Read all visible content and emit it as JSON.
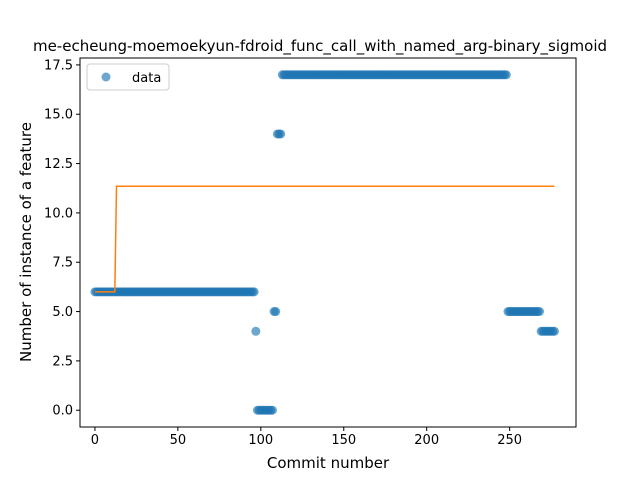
{
  "chart_data": {
    "type": "scatter",
    "title": "me-echeung-moemoekyun-fdroid_func_call_with_named_arg-binary_sigmoid",
    "xlabel": "Commit number",
    "ylabel": "Number of instance of a feature",
    "xlim": [
      -9,
      290
    ],
    "ylim": [
      -0.85,
      17.85
    ],
    "xticks": [
      0,
      50,
      100,
      150,
      200,
      250
    ],
    "yticks": [
      0.0,
      2.5,
      5.0,
      7.5,
      10.0,
      12.5,
      15.0,
      17.5
    ],
    "ytick_labels": [
      "0.0",
      "2.5",
      "5.0",
      "7.5",
      "10.0",
      "12.5",
      "15.0",
      "17.5"
    ],
    "grid": false,
    "legend": {
      "placement": "top-left",
      "entries": [
        "data"
      ]
    },
    "series": [
      {
        "name": "data",
        "kind": "scatter",
        "color": "#1f77b4",
        "segments": [
          {
            "x_start": 0,
            "x_end": 96,
            "y": 6
          },
          {
            "x_start": 97,
            "x_end": 97,
            "y": 4
          },
          {
            "x_start": 98,
            "x_end": 107,
            "y": 0
          },
          {
            "x_start": 108,
            "x_end": 109,
            "y": 5
          },
          {
            "x_start": 110,
            "x_end": 112,
            "y": 14
          },
          {
            "x_start": 113,
            "x_end": 248,
            "y": 17
          },
          {
            "x_start": 249,
            "x_end": 268,
            "y": 5
          },
          {
            "x_start": 269,
            "x_end": 277,
            "y": 4
          }
        ]
      },
      {
        "kind": "line",
        "color": "#ff7f0e",
        "x": [
          0,
          12,
          13,
          277
        ],
        "y": [
          6.0,
          6.0,
          11.35,
          11.35
        ]
      }
    ]
  }
}
